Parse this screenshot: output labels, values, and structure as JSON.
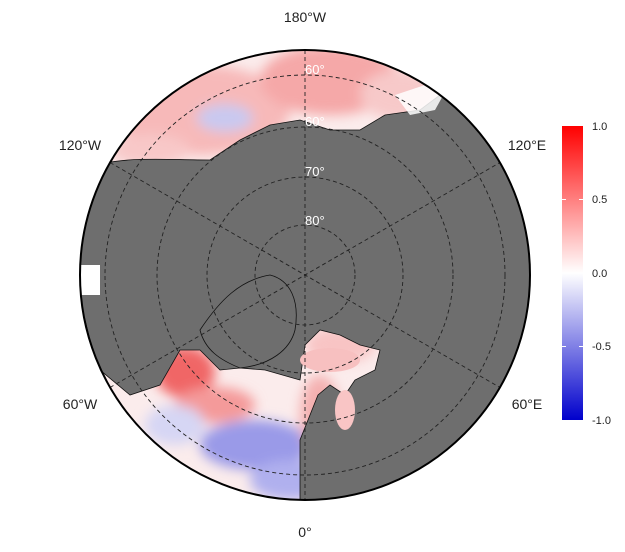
{
  "map": {
    "projection": "north polar stereographic",
    "land_color": "#6e6e6e",
    "coast_color": "#111111",
    "grid_color": "#222222"
  },
  "longitude_labels": {
    "top": "180°W",
    "upper_left": "120°W",
    "upper_right": "120°E",
    "lower_left": "60°W",
    "lower_right": "60°E",
    "bottom": "0°"
  },
  "latitude_labels": [
    "60°",
    "60°",
    "70°",
    "80°"
  ],
  "colorbar": {
    "ticks": [
      "1.0",
      "0.5",
      "0.0",
      "-0.5",
      "-1.0"
    ],
    "colors": {
      "high": "#ff0000",
      "mid": "#ffffff",
      "low": "#0000cc"
    }
  }
}
